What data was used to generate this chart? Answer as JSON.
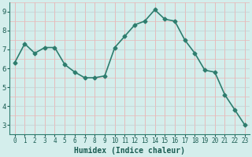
{
  "x": [
    0,
    1,
    2,
    3,
    4,
    5,
    6,
    7,
    8,
    9,
    10,
    11,
    12,
    13,
    14,
    15,
    16,
    17,
    18,
    19,
    20,
    21,
    22,
    23
  ],
  "y": [
    6.3,
    7.3,
    6.8,
    7.1,
    7.1,
    6.2,
    5.8,
    5.5,
    5.5,
    5.6,
    7.1,
    7.7,
    8.3,
    8.5,
    9.1,
    8.6,
    8.5,
    7.5,
    6.8,
    5.9,
    5.8,
    4.6,
    3.8,
    3.0
  ],
  "xlabel": "Humidex (Indice chaleur)",
  "ylim": [
    2.5,
    9.5
  ],
  "xlim": [
    -0.5,
    23.5
  ],
  "yticks": [
    3,
    4,
    5,
    6,
    7,
    8,
    9
  ],
  "xticks": [
    0,
    1,
    2,
    3,
    4,
    5,
    6,
    7,
    8,
    9,
    10,
    11,
    12,
    13,
    14,
    15,
    16,
    17,
    18,
    19,
    20,
    21,
    22,
    23
  ],
  "line_color": "#2e7d6e",
  "marker": "D",
  "marker_size": 2.5,
  "bg_color": "#d4eeec",
  "grid_major_color": "#c8dada",
  "grid_minor_color": "#e8b8b8",
  "fig_bg": "#d4eeec",
  "line_width": 1.2,
  "xlabel_color": "#1a5c52",
  "tick_color": "#1a5c52",
  "spine_color": "#2e7d6e"
}
